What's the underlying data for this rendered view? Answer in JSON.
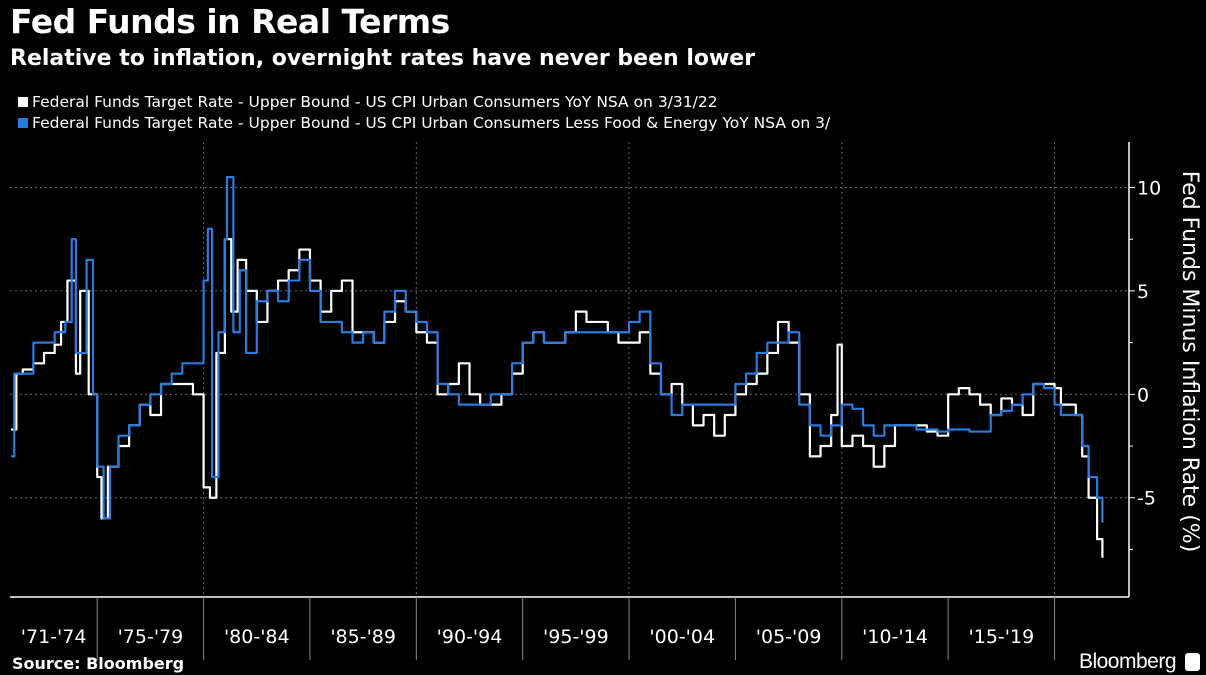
{
  "chart_data": {
    "type": "line",
    "title": "Fed Funds in Real Terms",
    "subtitle": "Relative to inflation, overnight rates have never been lower",
    "ylabel": "Fed Funds Minus Inflation Rate (%)",
    "xlabel": "",
    "ylim": [
      -9.8,
      12.2
    ],
    "xlim": [
      1970.9,
      2023.5
    ],
    "yticks": [
      10,
      5,
      0,
      -5
    ],
    "ytick_labels": [
      "10",
      "5",
      "0",
      "-5"
    ],
    "grid": true,
    "legend_placement": "top-left",
    "x_categories": [
      {
        "label": "'71-'74",
        "start": 1970.9,
        "end": 1975
      },
      {
        "label": "'75-'79",
        "start": 1975,
        "end": 1980
      },
      {
        "label": "'80-'84",
        "start": 1980,
        "end": 1985
      },
      {
        "label": "'85-'89",
        "start": 1985,
        "end": 1990
      },
      {
        "label": "'90-'94",
        "start": 1990,
        "end": 1995
      },
      {
        "label": "'95-'99",
        "start": 1995,
        "end": 2000
      },
      {
        "label": "'00-'04",
        "start": 2000,
        "end": 2005
      },
      {
        "label": "'05-'09",
        "start": 2005,
        "end": 2010
      },
      {
        "label": "'10-'14",
        "start": 2010,
        "end": 2015
      },
      {
        "label": "'15-'19",
        "start": 2015,
        "end": 2020
      }
    ],
    "series": [
      {
        "name": "Federal Funds Target Rate - Upper Bound - US CPI Urban Consumers YoY NSA on 3/31/22",
        "color": "#ffffff",
        "x": [
          1970.95,
          1971.2,
          1971.5,
          1972,
          1972.5,
          1973,
          1973.3,
          1973.6,
          1974,
          1974.2,
          1974.6,
          1975,
          1975.2,
          1975.5,
          1976,
          1976.5,
          1977,
          1977.5,
          1978,
          1978.5,
          1979,
          1979.5,
          1980,
          1980.3,
          1980.6,
          1981,
          1981.3,
          1981.6,
          1982,
          1982.5,
          1983,
          1983.5,
          1984,
          1984.5,
          1985,
          1985.5,
          1986,
          1986.5,
          1987,
          1987.5,
          1988,
          1988.5,
          1989,
          1989.5,
          1990,
          1990.5,
          1991,
          1991.5,
          1992,
          1992.5,
          1993,
          1993.5,
          1994,
          1994.5,
          1995,
          1995.5,
          1996,
          1996.5,
          1997,
          1997.5,
          1998,
          1998.5,
          1999,
          1999.5,
          2000,
          2000.5,
          2001,
          2001.5,
          2002,
          2002.5,
          2003,
          2003.5,
          2004,
          2004.5,
          2005,
          2005.5,
          2006,
          2006.5,
          2007,
          2007.5,
          2008,
          2008.5,
          2009,
          2009.5,
          2009.8,
          2010,
          2010.5,
          2011,
          2011.5,
          2012,
          2012.5,
          2013,
          2013.5,
          2014,
          2014.5,
          2015,
          2015.5,
          2016,
          2016.5,
          2017,
          2017.5,
          2018,
          2018.5,
          2019,
          2019.5,
          2020,
          2020.3,
          2020.5,
          2021,
          2021.3,
          2021.6,
          2022,
          2022.25
        ],
        "values": [
          -1.7,
          1,
          1.2,
          1.5,
          2,
          2.4,
          3.5,
          5.5,
          1,
          5,
          0,
          -4,
          -6,
          -3.5,
          -2.5,
          -1.5,
          -0.5,
          -1,
          0.5,
          0.5,
          0.5,
          0,
          -4.5,
          -5,
          2,
          7.5,
          4,
          6.5,
          5,
          3.5,
          5,
          5.5,
          6,
          7,
          5.5,
          4,
          5,
          5.5,
          3,
          3,
          2.5,
          3.5,
          4.5,
          4,
          3,
          2.5,
          0,
          0.5,
          1.5,
          0,
          -0.5,
          -0.5,
          0,
          1,
          2.5,
          3,
          2.5,
          2.5,
          3,
          4,
          3.5,
          3.5,
          3,
          2.5,
          2.5,
          3,
          1,
          0,
          0.5,
          -0.5,
          -1.5,
          -1,
          -2,
          -1,
          0,
          0.5,
          1,
          2,
          3.5,
          2.5,
          0,
          -3,
          -2.5,
          -1,
          2.4,
          -2.5,
          -2,
          -2.5,
          -3.5,
          -2.5,
          -1.5,
          -1.5,
          -1.5,
          -1.8,
          -2,
          0,
          0.3,
          0,
          -0.5,
          -1,
          -0.2,
          -0.5,
          -1,
          0.5,
          0.5,
          0.3,
          -0.5,
          -0.5,
          -1,
          -3,
          -5,
          -7,
          -7.9
        ]
      },
      {
        "name": "Federal Funds Target Rate - Upper Bound - US CPI Urban Consumers Less Food & Energy YoY NSA on 3/",
        "color": "#2b7bde",
        "x": [
          1970.95,
          1971.1,
          1971.5,
          1972,
          1973,
          1973.5,
          1973.8,
          1974,
          1974.5,
          1974.8,
          1975,
          1975.3,
          1975.6,
          1976,
          1976.5,
          1977,
          1977.5,
          1978,
          1978.5,
          1979,
          1979.5,
          1980,
          1980.2,
          1980.4,
          1980.7,
          1981,
          1981.1,
          1981.4,
          1981.7,
          1982,
          1982.5,
          1983,
          1983.5,
          1984,
          1984.5,
          1985,
          1985.5,
          1986,
          1986.5,
          1987,
          1987.5,
          1988,
          1988.5,
          1989,
          1989.5,
          1990,
          1990.5,
          1991,
          1991.5,
          1992,
          1992.5,
          1993,
          1993.5,
          1994,
          1994.5,
          1995,
          1995.5,
          1996,
          1996.5,
          1997,
          1997.5,
          1998,
          1998.5,
          1999,
          1999.5,
          2000,
          2000.5,
          2001,
          2001.5,
          2002,
          2002.5,
          2003,
          2003.5,
          2004,
          2004.5,
          2005,
          2005.5,
          2006,
          2006.5,
          2007,
          2007.5,
          2008,
          2008.5,
          2009,
          2009.5,
          2010,
          2010.5,
          2011,
          2011.5,
          2012,
          2012.5,
          2013,
          2013.5,
          2014,
          2014.5,
          2015,
          2015.5,
          2016,
          2016.5,
          2017,
          2017.5,
          2018,
          2018.5,
          2019,
          2019.5,
          2020,
          2020.3,
          2020.5,
          2021,
          2021.3,
          2021.6,
          2022,
          2022.25
        ],
        "values": [
          -3,
          1,
          1,
          2.5,
          3,
          3.5,
          7.5,
          2,
          6.5,
          0,
          -3.5,
          -6,
          -3.5,
          -2,
          -1.5,
          -0.5,
          0,
          0.5,
          1,
          1.5,
          1.5,
          5.5,
          8,
          -4,
          3,
          7.5,
          10.5,
          3,
          6,
          2,
          4.5,
          5,
          4.5,
          5.5,
          6.5,
          5,
          3.5,
          3.5,
          3,
          2.5,
          3,
          2.5,
          4,
          5,
          4,
          3.5,
          3,
          0.5,
          0,
          -0.5,
          -0.5,
          -0.5,
          0,
          0,
          1.5,
          2.5,
          3,
          2.5,
          2.5,
          3,
          3,
          3,
          3,
          3,
          3,
          3.5,
          4,
          1.5,
          0,
          -1,
          -0.5,
          -0.5,
          -0.5,
          -0.5,
          -0.5,
          0.5,
          1,
          2,
          2.5,
          2.5,
          3,
          -0.5,
          -1.5,
          -2,
          -1.5,
          -0.5,
          -0.7,
          -1.5,
          -2,
          -1.5,
          -1.5,
          -1.5,
          -1.7,
          -1.7,
          -1.8,
          -1.7,
          -1.7,
          -1.8,
          -1.8,
          -1,
          -0.8,
          -0.5,
          0,
          0.5,
          0.3,
          -0.5,
          -1,
          -1,
          -1,
          -2.5,
          -4,
          -5,
          -6.2
        ]
      }
    ]
  },
  "footer": {
    "source": "Source: Bloomberg",
    "brand": "Bloomberg"
  }
}
